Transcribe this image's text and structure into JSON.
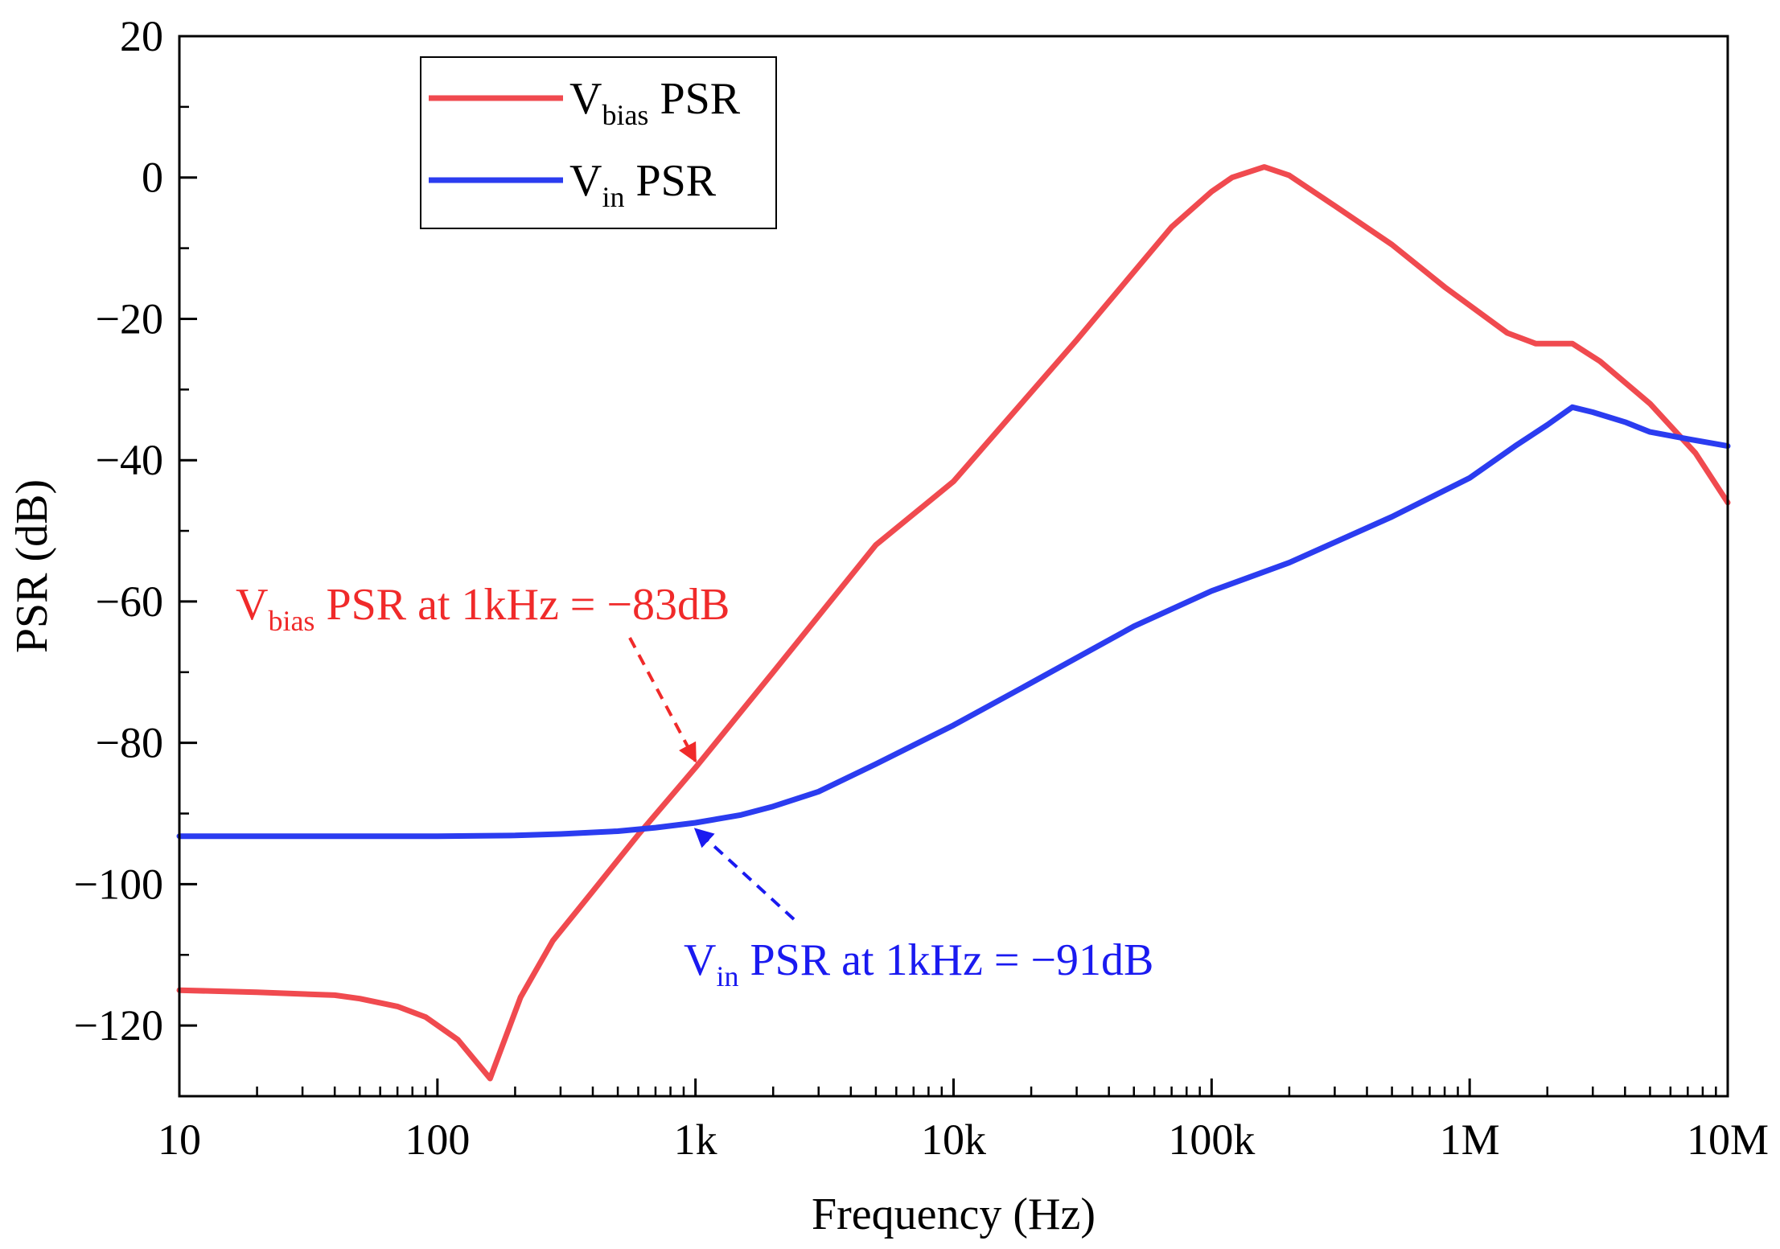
{
  "chart_data": {
    "type": "line",
    "title": "",
    "xlabel": "Frequency (Hz)",
    "ylabel": "PSR (dB)",
    "xscale": "log",
    "xlim": [
      10,
      10000000
    ],
    "ylim": [
      -130,
      20
    ],
    "x_ticks": [
      {
        "value": 10,
        "label": "10"
      },
      {
        "value": 100,
        "label": "100"
      },
      {
        "value": 1000,
        "label": "1k"
      },
      {
        "value": 10000,
        "label": "10k"
      },
      {
        "value": 100000,
        "label": "100k"
      },
      {
        "value": 1000000,
        "label": "1M"
      },
      {
        "value": 10000000,
        "label": "10M"
      }
    ],
    "y_ticks": [
      {
        "value": 20,
        "label": "20"
      },
      {
        "value": 0,
        "label": "0"
      },
      {
        "value": -20,
        "label": "−20"
      },
      {
        "value": -40,
        "label": "−40"
      },
      {
        "value": -60,
        "label": "−60"
      },
      {
        "value": -80,
        "label": "−80"
      },
      {
        "value": -100,
        "label": "−100"
      },
      {
        "value": -120,
        "label": "−120"
      }
    ],
    "legend_position": "top-left",
    "series": [
      {
        "name": "Vbias PSR",
        "label_main": "V",
        "label_sub": "bias",
        "label_rest": " PSR",
        "color": "#f04a4f",
        "x": [
          10,
          20,
          40,
          50,
          70,
          90,
          120,
          160,
          210,
          280,
          400,
          600,
          1000,
          2000,
          5000,
          10000,
          30000,
          70000,
          100000,
          120000,
          160000,
          200000,
          300000,
          500000,
          800000,
          1400000,
          1800000,
          2000000,
          2500000,
          3200000,
          5000000,
          7500000,
          10000000
        ],
        "y": [
          -115,
          -115.3,
          -115.7,
          -116.2,
          -117.3,
          -118.8,
          -122,
          -127.5,
          -116,
          -108,
          -101,
          -93,
          -83.5,
          -70,
          -52,
          -43,
          -23,
          -7,
          -2,
          0,
          1.5,
          0.3,
          -4,
          -9.5,
          -15.5,
          -22,
          -23.5,
          -23.5,
          -23.5,
          -26,
          -32,
          -39,
          -46
        ]
      },
      {
        "name": "Vin PSR",
        "label_main": "V",
        "label_sub": "in",
        "label_rest": " PSR",
        "color": "#2b3cf0",
        "x": [
          10,
          100,
          200,
          300,
          500,
          700,
          1000,
          1500,
          2000,
          3000,
          5000,
          10000,
          20000,
          50000,
          100000,
          200000,
          500000,
          1000000,
          1500000,
          2000000,
          2500000,
          3000000,
          4000000,
          5000000,
          7000000,
          10000000
        ],
        "y": [
          -93.2,
          -93.2,
          -93.1,
          -92.9,
          -92.5,
          -92.0,
          -91.3,
          -90.2,
          -89.0,
          -86.9,
          -83.0,
          -77.5,
          -71.5,
          -63.5,
          -58.5,
          -54.5,
          -48.0,
          -42.5,
          -38.0,
          -35.0,
          -32.5,
          -33.2,
          -34.6,
          -36.0,
          -37.0,
          -38.0
        ]
      }
    ],
    "annotations": [
      {
        "id": "vbias",
        "text_main": "V",
        "text_sub": "bias",
        "text_rest": " PSR at 1kHz = −83dB",
        "color": "#f02a2a",
        "target_x": 1000,
        "target_y": -83.5
      },
      {
        "id": "vin",
        "text_main": "V",
        "text_sub": "in",
        "text_rest": " PSR at 1kHz = −91dB",
        "color": "#1a1af0",
        "target_x": 1000,
        "target_y": -91.3
      }
    ]
  }
}
